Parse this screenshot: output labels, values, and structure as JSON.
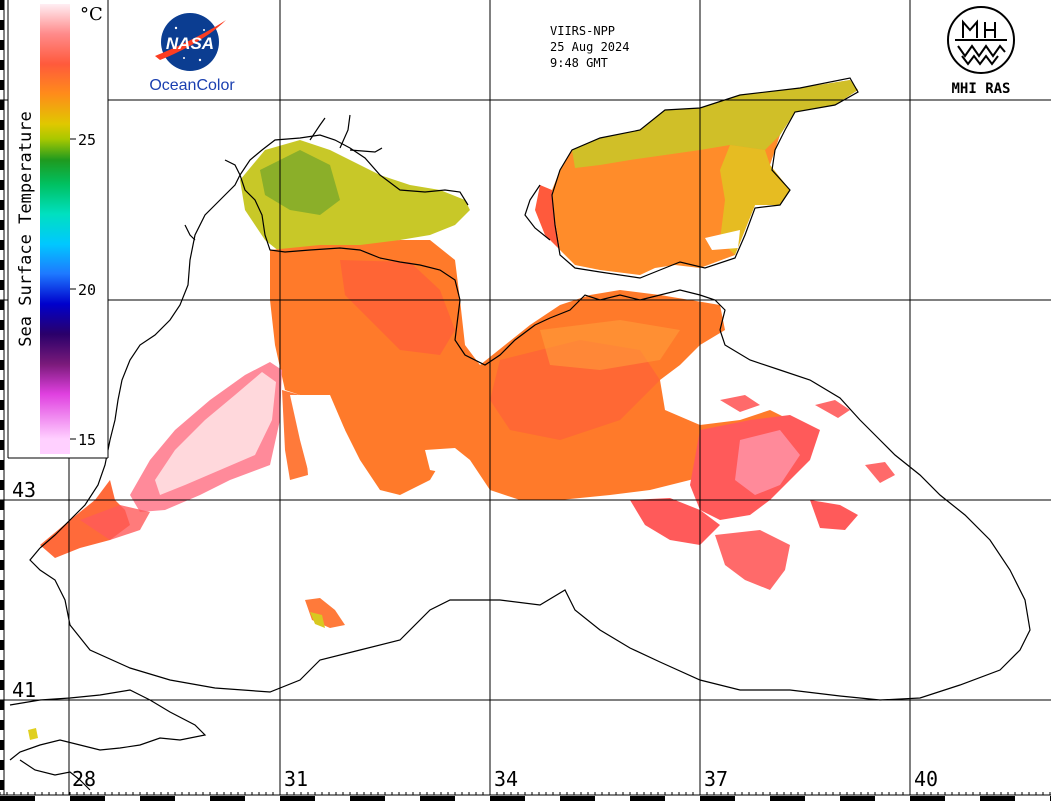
{
  "header": {
    "satellite": "VIIRS-NPP",
    "date": "25 Aug 2024",
    "time": "9:48 GMT"
  },
  "logos": {
    "nasa_text": "NASA",
    "oceancolor_text": "OceanColor",
    "mhi_text": "MHI RAS"
  },
  "colorbar": {
    "title": "Sea Surface Temperature",
    "unit": "°C",
    "ticks": [
      {
        "value": 25,
        "label": "25"
      },
      {
        "value": 20,
        "label": "20"
      },
      {
        "value": 15,
        "label": "15"
      }
    ],
    "range": [
      14.5,
      29.5
    ],
    "gradient_stops": [
      {
        "value": 29.5,
        "color": "#ffeef3"
      },
      {
        "value": 28.5,
        "color": "#ff8a8a"
      },
      {
        "value": 27.5,
        "color": "#ff5a3c"
      },
      {
        "value": 26.5,
        "color": "#ff8c1a"
      },
      {
        "value": 25.5,
        "color": "#e0c800"
      },
      {
        "value": 25.0,
        "color": "#a8c800"
      },
      {
        "value": 24.3,
        "color": "#1f9a1f"
      },
      {
        "value": 23.5,
        "color": "#00c060"
      },
      {
        "value": 22.5,
        "color": "#00e0c0"
      },
      {
        "value": 21.5,
        "color": "#00c8ff"
      },
      {
        "value": 20.5,
        "color": "#1e78ff"
      },
      {
        "value": 19.5,
        "color": "#0000cc"
      },
      {
        "value": 18.5,
        "color": "#2a006a"
      },
      {
        "value": 17.5,
        "color": "#7a1a7a"
      },
      {
        "value": 16.5,
        "color": "#e040e0"
      },
      {
        "value": 15.0,
        "color": "#ffd0ff"
      }
    ]
  },
  "axes": {
    "lon_labels": [
      "28",
      "31",
      "34",
      "37",
      "40"
    ],
    "lat_labels": [
      "43",
      "41"
    ]
  },
  "map_colors": {
    "warm_orange": "#ff8c2a",
    "orange": "#ff7a2a",
    "pinkred": "#ff5a5a",
    "hot_pink": "#ff8a9a",
    "pale_pink": "#ffd8dc",
    "yellow_green": "#c8c828",
    "green": "#5a9a2a",
    "coast": "#000000"
  }
}
